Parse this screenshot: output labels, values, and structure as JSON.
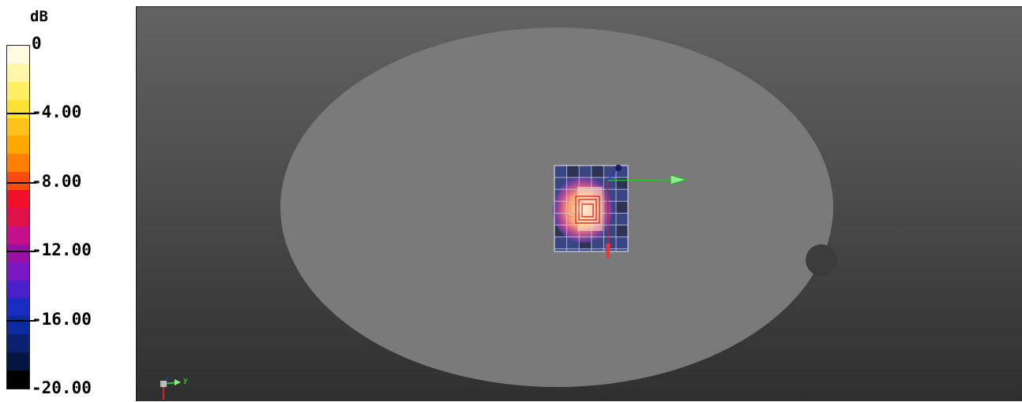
{
  "legend": {
    "unit": "dB",
    "ticks": [
      "0",
      "-4.00",
      "-8.00",
      "-12.00",
      "-16.00",
      "-20.00"
    ],
    "colors": [
      "#fffbe0",
      "#fff6a8",
      "#ffee66",
      "#ffe033",
      "#ffc21a",
      "#ffa600",
      "#ff7f00",
      "#ff4a10",
      "#f0102a",
      "#e0104a",
      "#c4108a",
      "#9a10a4",
      "#7a18c4",
      "#4a20cc",
      "#1c2ac4",
      "#0e2aa0",
      "#0a2070",
      "#061540",
      "#000000"
    ]
  },
  "axes_triad": {
    "y_label": "y"
  }
}
